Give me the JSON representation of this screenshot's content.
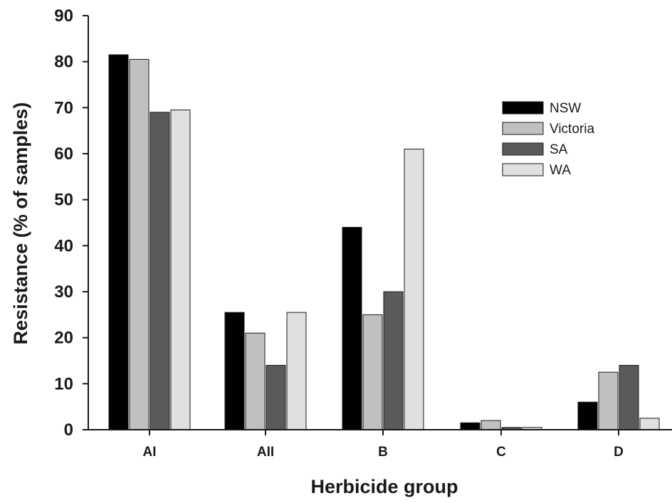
{
  "chart_data": {
    "type": "bar",
    "title": "",
    "xlabel": "Herbicide group",
    "ylabel": "Resistance (% of samples)",
    "categories": [
      "AI",
      "AII",
      "B",
      "C",
      "D"
    ],
    "ylim": [
      0,
      90
    ],
    "yticks": [
      "0",
      "10",
      "20",
      "30",
      "40",
      "50",
      "60",
      "70",
      "80",
      "90"
    ],
    "legend_position": "top-right",
    "grid": false,
    "series": [
      {
        "name": "NSW",
        "color": "#000000",
        "values": [
          81.5,
          25.5,
          44,
          1.5,
          6
        ]
      },
      {
        "name": "Victoria",
        "color": "#c0c0c0",
        "values": [
          80.5,
          21,
          25,
          2,
          12.5
        ]
      },
      {
        "name": "SA",
        "color": "#5a5a5a",
        "values": [
          69,
          14,
          30,
          0.5,
          14
        ]
      },
      {
        "name": "WA",
        "color": "#e0e0e0",
        "values": [
          69.5,
          25.5,
          61,
          0.5,
          2.5
        ]
      }
    ]
  }
}
